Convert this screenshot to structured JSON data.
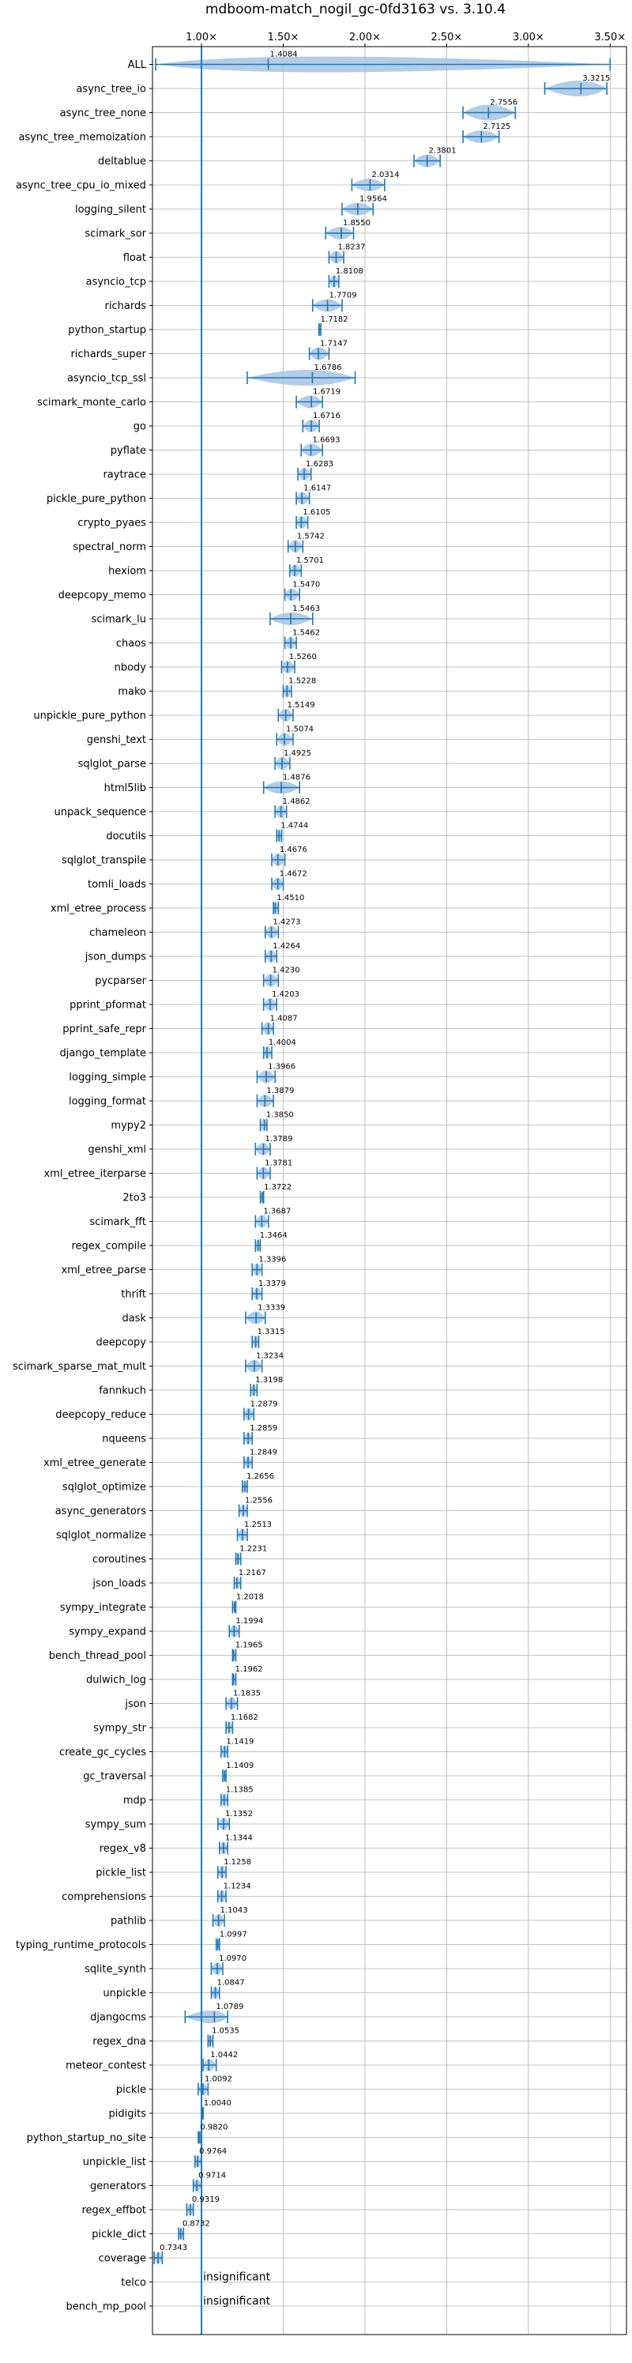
{
  "chart_data": {
    "type": "violin",
    "title": "mdboom-match_nogil_gc-0fd3163 vs. 3.10.4",
    "xlabel": "",
    "ylabel": "",
    "xlim": [
      0.7,
      3.6
    ],
    "x_ticks": [
      1.0,
      1.5,
      2.0,
      2.5,
      3.0,
      3.5
    ],
    "x_tick_labels": [
      "1.00×",
      "1.50×",
      "2.00×",
      "2.50×",
      "3.00×",
      "3.50×"
    ],
    "grid": true,
    "reference_line": 1.0,
    "colors": {
      "violin": "#a6c4e4",
      "line": "#1f77b4",
      "grid": "#b0b0b0"
    },
    "categories": [
      "ALL",
      "async_tree_io",
      "async_tree_none",
      "async_tree_memoization",
      "deltablue",
      "async_tree_cpu_io_mixed",
      "logging_silent",
      "scimark_sor",
      "float",
      "asyncio_tcp",
      "richards",
      "python_startup",
      "richards_super",
      "asyncio_tcp_ssl",
      "scimark_monte_carlo",
      "go",
      "pyflate",
      "raytrace",
      "pickle_pure_python",
      "crypto_pyaes",
      "spectral_norm",
      "hexiom",
      "deepcopy_memo",
      "scimark_lu",
      "chaos",
      "nbody",
      "mako",
      "unpickle_pure_python",
      "genshi_text",
      "sqlglot_parse",
      "html5lib",
      "unpack_sequence",
      "docutils",
      "sqlglot_transpile",
      "tomli_loads",
      "xml_etree_process",
      "chameleon",
      "json_dumps",
      "pycparser",
      "pprint_pformat",
      "pprint_safe_repr",
      "django_template",
      "logging_simple",
      "logging_format",
      "mypy2",
      "genshi_xml",
      "xml_etree_iterparse",
      "2to3",
      "scimark_fft",
      "regex_compile",
      "xml_etree_parse",
      "thrift",
      "dask",
      "deepcopy",
      "scimark_sparse_mat_mult",
      "fannkuch",
      "deepcopy_reduce",
      "nqueens",
      "xml_etree_generate",
      "sqlglot_optimize",
      "async_generators",
      "sqlglot_normalize",
      "coroutines",
      "json_loads",
      "sympy_integrate",
      "sympy_expand",
      "bench_thread_pool",
      "dulwich_log",
      "json",
      "sympy_str",
      "create_gc_cycles",
      "gc_traversal",
      "mdp",
      "sympy_sum",
      "regex_v8",
      "pickle_list",
      "comprehensions",
      "pathlib",
      "typing_runtime_protocols",
      "sqlite_synth",
      "unpickle",
      "djangocms",
      "regex_dna",
      "meteor_contest",
      "pickle",
      "pidigits",
      "python_startup_no_site",
      "unpickle_list",
      "generators",
      "regex_effbot",
      "pickle_dict",
      "coverage",
      "telco",
      "bench_mp_pool"
    ],
    "values": [
      1.4084,
      3.3215,
      2.7556,
      2.7125,
      2.3801,
      2.0314,
      1.9564,
      1.855,
      1.8237,
      1.8108,
      1.7709,
      1.7182,
      1.7147,
      1.6786,
      1.6719,
      1.6716,
      1.6693,
      1.6283,
      1.6147,
      1.6105,
      1.5742,
      1.5701,
      1.547,
      1.5463,
      1.5462,
      1.526,
      1.5228,
      1.5149,
      1.5074,
      1.4925,
      1.4876,
      1.4862,
      1.4744,
      1.4676,
      1.4672,
      1.451,
      1.4273,
      1.4264,
      1.423,
      1.4203,
      1.4087,
      1.4004,
      1.3966,
      1.3879,
      1.385,
      1.3789,
      1.3781,
      1.3722,
      1.3687,
      1.3464,
      1.3396,
      1.3379,
      1.3339,
      1.3315,
      1.3234,
      1.3198,
      1.2879,
      1.2859,
      1.2849,
      1.2656,
      1.2556,
      1.2513,
      1.2231,
      1.2167,
      1.2018,
      1.1994,
      1.1965,
      1.1962,
      1.1835,
      1.1682,
      1.1419,
      1.1409,
      1.1385,
      1.1352,
      1.1344,
      1.1258,
      1.1234,
      1.1043,
      1.0997,
      1.097,
      1.0847,
      1.0789,
      1.0535,
      1.0442,
      1.0092,
      1.004,
      0.982,
      0.9764,
      0.9714,
      0.9319,
      0.8732,
      0.7343,
      null,
      null
    ],
    "value_labels": [
      "1.4084",
      "3.3215",
      "2.7556",
      "2.7125",
      "2.3801",
      "2.0314",
      "1.9564",
      "1.8550",
      "1.8237",
      "1.8108",
      "1.7709",
      "1.7182",
      "1.7147",
      "1.6786",
      "1.6719",
      "1.6716",
      "1.6693",
      "1.6283",
      "1.6147",
      "1.6105",
      "1.5742",
      "1.5701",
      "1.5470",
      "1.5463",
      "1.5462",
      "1.5260",
      "1.5228",
      "1.5149",
      "1.5074",
      "1.4925",
      "1.4876",
      "1.4862",
      "1.4744",
      "1.4676",
      "1.4672",
      "1.4510",
      "1.4273",
      "1.4264",
      "1.4230",
      "1.4203",
      "1.4087",
      "1.4004",
      "1.3966",
      "1.3879",
      "1.3850",
      "1.3789",
      "1.3781",
      "1.3722",
      "1.3687",
      "1.3464",
      "1.3396",
      "1.3379",
      "1.3339",
      "1.3315",
      "1.3234",
      "1.3198",
      "1.2879",
      "1.2859",
      "1.2849",
      "1.2656",
      "1.2556",
      "1.2513",
      "1.2231",
      "1.2167",
      "1.2018",
      "1.1994",
      "1.1965",
      "1.1962",
      "1.1835",
      "1.1682",
      "1.1419",
      "1.1409",
      "1.1385",
      "1.1352",
      "1.1344",
      "1.1258",
      "1.1234",
      "1.1043",
      "1.0997",
      "1.0970",
      "1.0847",
      "1.0789",
      "1.0535",
      "1.0442",
      "1.0092",
      "1.0040",
      "0.9820",
      "0.9764",
      "0.9714",
      "0.9319",
      "0.8732",
      "0.7343",
      "",
      ""
    ],
    "ranges": [
      [
        0.72,
        3.5
      ],
      [
        3.1,
        3.48
      ],
      [
        2.6,
        2.92
      ],
      [
        2.6,
        2.82
      ],
      [
        2.3,
        2.46
      ],
      [
        1.92,
        2.12
      ],
      [
        1.86,
        2.05
      ],
      [
        1.76,
        1.93
      ],
      [
        1.78,
        1.87
      ],
      [
        1.78,
        1.84
      ],
      [
        1.68,
        1.86
      ],
      [
        1.72,
        1.73
      ],
      [
        1.66,
        1.78
      ],
      [
        1.28,
        1.94
      ],
      [
        1.58,
        1.74
      ],
      [
        1.62,
        1.72
      ],
      [
        1.61,
        1.74
      ],
      [
        1.59,
        1.67
      ],
      [
        1.58,
        1.66
      ],
      [
        1.58,
        1.65
      ],
      [
        1.53,
        1.62
      ],
      [
        1.54,
        1.61
      ],
      [
        1.51,
        1.6
      ],
      [
        1.42,
        1.68
      ],
      [
        1.51,
        1.58
      ],
      [
        1.49,
        1.57
      ],
      [
        1.5,
        1.55
      ],
      [
        1.47,
        1.56
      ],
      [
        1.46,
        1.56
      ],
      [
        1.45,
        1.54
      ],
      [
        1.38,
        1.6
      ],
      [
        1.45,
        1.52
      ],
      [
        1.46,
        1.49
      ],
      [
        1.43,
        1.51
      ],
      [
        1.43,
        1.5
      ],
      [
        1.44,
        1.47
      ],
      [
        1.39,
        1.47
      ],
      [
        1.39,
        1.46
      ],
      [
        1.38,
        1.47
      ],
      [
        1.38,
        1.46
      ],
      [
        1.37,
        1.44
      ],
      [
        1.38,
        1.43
      ],
      [
        1.34,
        1.45
      ],
      [
        1.34,
        1.44
      ],
      [
        1.36,
        1.4
      ],
      [
        1.33,
        1.42
      ],
      [
        1.34,
        1.42
      ],
      [
        1.36,
        1.38
      ],
      [
        1.33,
        1.41
      ],
      [
        1.33,
        1.36
      ],
      [
        1.31,
        1.37
      ],
      [
        1.31,
        1.37
      ],
      [
        1.27,
        1.39
      ],
      [
        1.31,
        1.35
      ],
      [
        1.27,
        1.37
      ],
      [
        1.3,
        1.34
      ],
      [
        1.26,
        1.32
      ],
      [
        1.26,
        1.31
      ],
      [
        1.26,
        1.31
      ],
      [
        1.25,
        1.28
      ],
      [
        1.23,
        1.28
      ],
      [
        1.22,
        1.28
      ],
      [
        1.21,
        1.24
      ],
      [
        1.2,
        1.24
      ],
      [
        1.19,
        1.21
      ],
      [
        1.17,
        1.23
      ],
      [
        1.19,
        1.21
      ],
      [
        1.19,
        1.21
      ],
      [
        1.15,
        1.22
      ],
      [
        1.15,
        1.19
      ],
      [
        1.12,
        1.16
      ],
      [
        1.13,
        1.15
      ],
      [
        1.12,
        1.16
      ],
      [
        1.1,
        1.17
      ],
      [
        1.11,
        1.16
      ],
      [
        1.1,
        1.15
      ],
      [
        1.1,
        1.15
      ],
      [
        1.07,
        1.14
      ],
      [
        1.09,
        1.11
      ],
      [
        1.06,
        1.13
      ],
      [
        1.06,
        1.11
      ],
      [
        0.9,
        1.16
      ],
      [
        1.04,
        1.07
      ],
      [
        1.01,
        1.09
      ],
      [
        0.98,
        1.04
      ],
      [
        1.0,
        1.01
      ],
      [
        0.98,
        0.99
      ],
      [
        0.96,
        1.0
      ],
      [
        0.95,
        1.0
      ],
      [
        0.91,
        0.95
      ],
      [
        0.86,
        0.89
      ],
      [
        0.71,
        0.76
      ],
      [
        null,
        null
      ],
      [
        null,
        null
      ]
    ],
    "annotations": [
      {
        "category": "telco",
        "text": "insignificant"
      },
      {
        "category": "bench_mp_pool",
        "text": "insignificant"
      }
    ]
  }
}
